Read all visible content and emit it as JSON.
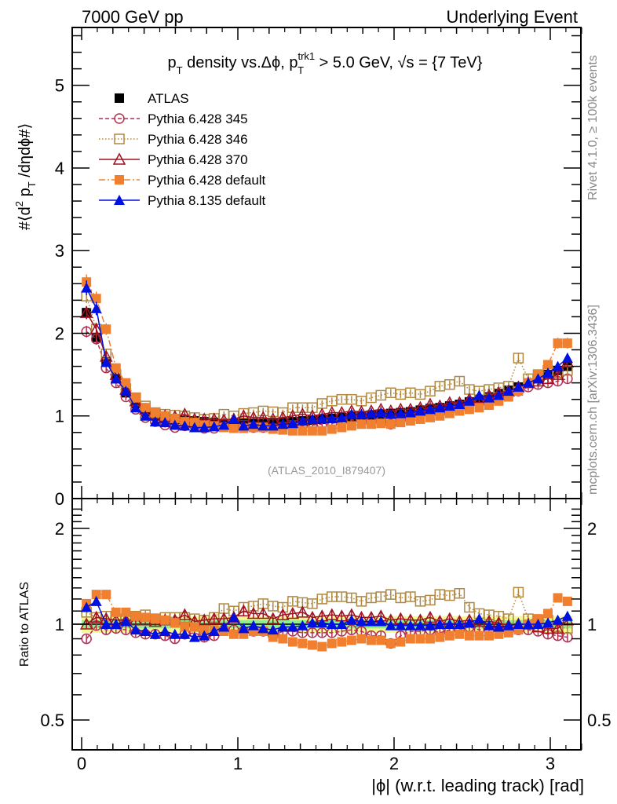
{
  "header": {
    "left": "7000 GeV pp",
    "right": "Underlying Event"
  },
  "side_labels": {
    "rivet": "Rivet 4.1.0, ≥ 100k events",
    "mcplots": "mcplots.cern.ch [arXiv:1306.3436]"
  },
  "chart_data": {
    "type": "scatter",
    "title_parts": {
      "p": "p",
      "sub_t": "T",
      "mid": " density vs.Δϕ, p",
      "sup_trk": "trk1",
      "sub_t2": "T",
      "tail": " > 5.0 GeV, √s = {7 TeV}"
    },
    "analysis_id": "(ATLAS_2010_I879407)",
    "xlabel": "|ϕ| (w.r.t. leading track) [rad]",
    "ylabel": "#⟨d² p_T /dηdϕ#⟩",
    "ylabel_parts": {
      "pre": "#⟨d",
      "sup": "2",
      "mid": " p",
      "sub": "T",
      "post": " /dηdϕ#⟩"
    },
    "ratio_ylabel": "Ratio to ATLAS",
    "xlim": [
      -0.06,
      3.2
    ],
    "ylim": [
      0,
      5.7
    ],
    "ratio_ylim": [
      0.42,
      2.35
    ],
    "ratio_scale": "log",
    "x_ticks": [
      0,
      1,
      2,
      3
    ],
    "y_ticks": [
      0,
      1,
      2,
      3,
      4,
      5
    ],
    "ratio_ticks": [
      0.5,
      1,
      2
    ],
    "legend_placement": "top-left",
    "x": [
      0.031,
      0.094,
      0.157,
      0.22,
      0.283,
      0.346,
      0.408,
      0.471,
      0.534,
      0.597,
      0.66,
      0.723,
      0.785,
      0.848,
      0.911,
      0.974,
      1.037,
      1.1,
      1.162,
      1.225,
      1.288,
      1.351,
      1.414,
      1.477,
      1.539,
      1.602,
      1.665,
      1.728,
      1.791,
      1.854,
      1.916,
      1.979,
      2.042,
      2.105,
      2.168,
      2.231,
      2.293,
      2.356,
      2.419,
      2.482,
      2.545,
      2.608,
      2.67,
      2.733,
      2.796,
      2.859,
      2.922,
      2.985,
      3.048,
      3.11
    ],
    "series": [
      {
        "name": "ATLAS",
        "color": "#000000",
        "marker": "square-filled",
        "line": "none",
        "values": [
          2.25,
          1.95,
          1.65,
          1.45,
          1.28,
          1.15,
          1.05,
          1.0,
          0.97,
          0.96,
          0.95,
          0.94,
          0.93,
          0.92,
          0.91,
          0.91,
          0.91,
          0.91,
          0.91,
          0.92,
          0.92,
          0.93,
          0.94,
          0.95,
          0.96,
          0.97,
          0.98,
          0.99,
          1.0,
          1.01,
          1.02,
          1.03,
          1.04,
          1.05,
          1.07,
          1.09,
          1.1,
          1.12,
          1.14,
          1.17,
          1.2,
          1.23,
          1.27,
          1.31,
          1.35,
          1.4,
          1.45,
          1.5,
          1.55,
          1.6
        ]
      },
      {
        "name": "Pythia 6.428 345",
        "color": "#b03050",
        "marker": "circle-open",
        "line": "dashed",
        "values": [
          2.02,
          1.93,
          1.58,
          1.4,
          1.23,
          1.08,
          0.98,
          0.93,
          0.89,
          0.86,
          0.88,
          0.88,
          0.85,
          0.85,
          0.87,
          0.87,
          0.86,
          0.86,
          0.86,
          0.85,
          0.87,
          0.88,
          0.88,
          0.89,
          0.9,
          0.91,
          0.93,
          0.95,
          0.95,
          0.93,
          0.94,
          0.9,
          0.96,
          1.0,
          1.02,
          1.05,
          1.03,
          1.08,
          1.1,
          1.15,
          1.15,
          1.18,
          1.22,
          1.26,
          1.3,
          1.35,
          1.38,
          1.4,
          1.42,
          1.45
        ]
      },
      {
        "name": "Pythia 6.428 346",
        "color": "#b08840",
        "marker": "square-open",
        "line": "dotted",
        "values": [
          2.45,
          2.05,
          1.75,
          1.5,
          1.33,
          1.22,
          1.12,
          1.04,
          1.02,
          1.01,
          1.0,
          0.98,
          0.96,
          0.97,
          1.02,
          1.0,
          1.03,
          1.04,
          1.06,
          1.05,
          1.04,
          1.1,
          1.1,
          1.1,
          1.15,
          1.18,
          1.2,
          1.2,
          1.18,
          1.22,
          1.25,
          1.28,
          1.26,
          1.28,
          1.26,
          1.3,
          1.36,
          1.38,
          1.42,
          1.32,
          1.3,
          1.32,
          1.34,
          1.36,
          1.7,
          1.45,
          1.5,
          1.55,
          1.52,
          1.55
        ]
      },
      {
        "name": "Pythia 6.428 370",
        "color": "#a01020",
        "marker": "triangle-open",
        "line": "solid",
        "values": [
          2.25,
          2.05,
          1.72,
          1.5,
          1.32,
          1.18,
          1.08,
          1.02,
          1.0,
          0.99,
          1.02,
          0.96,
          0.96,
          0.96,
          0.95,
          0.96,
          1.0,
          0.98,
          0.98,
          0.96,
          0.98,
          1.0,
          1.02,
          1.0,
          1.02,
          1.04,
          1.04,
          1.06,
          1.05,
          1.06,
          1.08,
          1.06,
          1.08,
          1.08,
          1.1,
          1.14,
          1.12,
          1.16,
          1.16,
          1.2,
          1.22,
          1.25,
          1.28,
          1.3,
          1.35,
          1.4,
          1.42,
          1.45,
          1.5,
          1.65
        ]
      },
      {
        "name": "Pythia 6.428 default",
        "color": "#f08030",
        "marker": "square-filled",
        "line": "dashdot",
        "values": [
          2.62,
          2.42,
          2.05,
          1.58,
          1.4,
          1.22,
          1.1,
          1.04,
          1.0,
          0.97,
          0.93,
          0.92,
          0.89,
          0.88,
          0.86,
          0.85,
          0.85,
          0.86,
          0.86,
          0.84,
          0.83,
          0.82,
          0.82,
          0.82,
          0.82,
          0.84,
          0.86,
          0.88,
          0.9,
          0.9,
          0.91,
          0.9,
          0.92,
          0.94,
          0.96,
          0.98,
          1.0,
          1.03,
          1.06,
          1.08,
          1.1,
          1.13,
          1.18,
          1.23,
          1.3,
          1.4,
          1.5,
          1.62,
          1.88,
          1.88
        ]
      },
      {
        "name": "Pythia 8.135 default",
        "color": "#0010e0",
        "marker": "triangle-filled",
        "line": "solid",
        "values": [
          2.55,
          2.3,
          1.65,
          1.45,
          1.3,
          1.1,
          1.0,
          0.93,
          0.92,
          0.89,
          0.88,
          0.86,
          0.86,
          0.87,
          0.89,
          0.96,
          0.88,
          0.9,
          0.88,
          0.88,
          0.9,
          0.91,
          0.94,
          0.96,
          0.97,
          0.97,
          0.98,
          1.02,
          1.02,
          1.03,
          1.04,
          1.02,
          1.03,
          1.04,
          1.06,
          1.08,
          1.1,
          1.12,
          1.14,
          1.18,
          1.25,
          1.22,
          1.25,
          1.3,
          1.35,
          1.4,
          1.45,
          1.52,
          1.6,
          1.7
        ]
      }
    ],
    "ratio_series": [
      {
        "name": "Pythia 6.428 345",
        "values": [
          0.9,
          0.99,
          0.96,
          0.97,
          0.96,
          0.94,
          0.93,
          0.93,
          0.92,
          0.9,
          0.93,
          0.94,
          0.91,
          0.92,
          0.96,
          0.96,
          0.95,
          0.95,
          0.95,
          0.92,
          0.95,
          0.95,
          0.94,
          0.94,
          0.94,
          0.94,
          0.95,
          0.96,
          0.95,
          0.92,
          0.92,
          0.87,
          0.92,
          0.95,
          0.95,
          0.96,
          0.94,
          0.96,
          0.96,
          0.98,
          0.96,
          0.96,
          0.96,
          0.96,
          0.96,
          0.96,
          0.95,
          0.93,
          0.92,
          0.91
        ]
      },
      {
        "name": "Pythia 6.428 346",
        "values": [
          1.09,
          1.05,
          1.06,
          1.03,
          1.04,
          1.06,
          1.07,
          1.04,
          1.05,
          1.05,
          1.05,
          1.04,
          1.03,
          1.05,
          1.12,
          1.1,
          1.13,
          1.14,
          1.16,
          1.14,
          1.13,
          1.18,
          1.17,
          1.16,
          1.2,
          1.22,
          1.22,
          1.21,
          1.18,
          1.21,
          1.22,
          1.24,
          1.21,
          1.22,
          1.18,
          1.19,
          1.24,
          1.23,
          1.25,
          1.13,
          1.08,
          1.07,
          1.06,
          1.04,
          1.26,
          1.04,
          1.03,
          1.03,
          0.98,
          0.97
        ]
      },
      {
        "name": "Pythia 6.428 370",
        "values": [
          1.0,
          1.05,
          1.04,
          1.03,
          1.03,
          1.03,
          1.03,
          1.02,
          1.03,
          1.03,
          1.07,
          1.02,
          1.03,
          1.04,
          1.04,
          1.05,
          1.1,
          1.08,
          1.08,
          1.04,
          1.07,
          1.08,
          1.09,
          1.05,
          1.06,
          1.07,
          1.06,
          1.07,
          1.05,
          1.05,
          1.06,
          1.03,
          1.04,
          1.03,
          1.03,
          1.05,
          1.02,
          1.04,
          1.02,
          1.03,
          1.02,
          1.02,
          1.01,
          0.99,
          1.0,
          1.0,
          0.98,
          0.97,
          0.97,
          1.03
        ]
      },
      {
        "name": "Pythia 6.428 default",
        "values": [
          1.16,
          1.24,
          1.24,
          1.09,
          1.09,
          1.06,
          1.05,
          1.04,
          1.03,
          1.01,
          0.98,
          0.98,
          0.96,
          0.96,
          0.95,
          0.93,
          0.93,
          0.95,
          0.95,
          0.91,
          0.9,
          0.88,
          0.87,
          0.86,
          0.85,
          0.87,
          0.88,
          0.89,
          0.9,
          0.89,
          0.89,
          0.87,
          0.88,
          0.9,
          0.9,
          0.9,
          0.91,
          0.92,
          0.93,
          0.92,
          0.92,
          0.92,
          0.93,
          0.94,
          0.96,
          1.0,
          1.04,
          1.08,
          1.21,
          1.18
        ]
      },
      {
        "name": "Pythia 8.135 default",
        "values": [
          1.13,
          1.18,
          1.0,
          1.0,
          1.02,
          0.96,
          0.95,
          0.93,
          0.95,
          0.93,
          0.93,
          0.91,
          0.92,
          0.95,
          0.98,
          1.05,
          0.97,
          0.99,
          0.97,
          0.96,
          0.98,
          0.98,
          0.99,
          1.01,
          1.01,
          1.0,
          1.0,
          1.03,
          1.02,
          1.02,
          1.02,
          0.99,
          0.99,
          0.99,
          0.99,
          0.99,
          1.0,
          1.0,
          1.0,
          1.01,
          1.04,
          0.99,
          0.98,
          0.99,
          1.0,
          1.0,
          1.0,
          1.01,
          1.03,
          1.06
        ]
      }
    ],
    "ratio_band": {
      "inner_color": "#90f090",
      "outer_color": "#f8f890",
      "inner_halfwidth": 0.03,
      "outer_halfwidth": 0.06
    }
  }
}
